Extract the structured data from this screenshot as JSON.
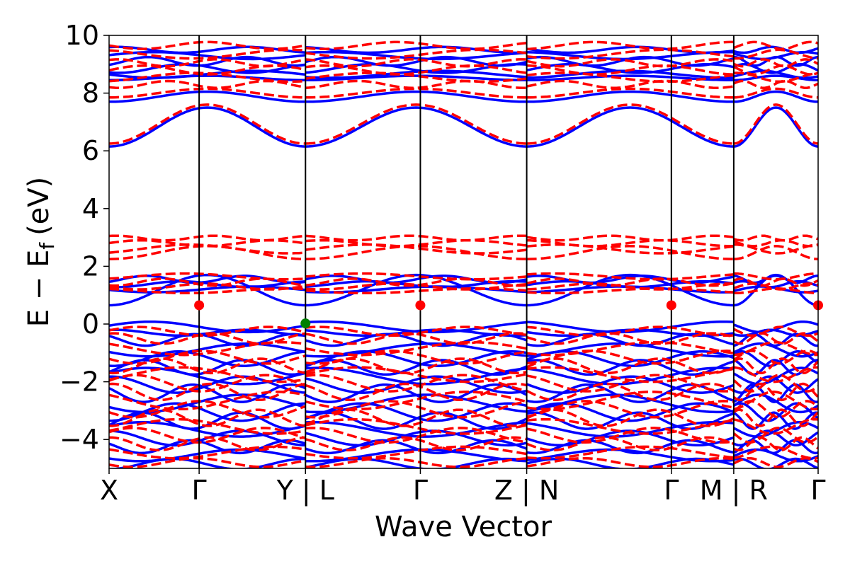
{
  "chart_data": {
    "type": "line",
    "title": "",
    "xlabel": "Wave Vector",
    "ylabel": "E − E",
    "ylabel_subscript": "f",
    "ylabel_unit": "(eV)",
    "ylim": [
      -5,
      10
    ],
    "yticks": [
      -4,
      -2,
      0,
      2,
      4,
      6,
      8,
      10
    ],
    "ytick_labels": [
      "−4",
      "−2",
      "0",
      "2",
      "4",
      "6",
      "8",
      "10"
    ],
    "xlim": [
      0,
      1
    ],
    "kpoint_ticks": [
      {
        "x": 0.0,
        "label": "X"
      },
      {
        "x": 0.127,
        "label": "Γ"
      },
      {
        "x": 0.277,
        "label": "Y | L"
      },
      {
        "x": 0.439,
        "label": "Γ"
      },
      {
        "x": 0.589,
        "label": "Z | N"
      },
      {
        "x": 0.793,
        "label": "Γ"
      },
      {
        "x": 0.881,
        "label": "M | R"
      },
      {
        "x": 1.0,
        "label": "Γ"
      }
    ],
    "segments": [
      {
        "start": 0.0,
        "end": 0.277,
        "dispersion_phase": 0.0
      },
      {
        "start": 0.277,
        "end": 0.589,
        "dispersion_phase": 0.13
      },
      {
        "start": 0.589,
        "end": 0.881,
        "dispersion_phase": 0.26
      },
      {
        "start": 0.881,
        "end": 1.0,
        "dispersion_phase": 0.39
      }
    ],
    "colors": {
      "spin_up": "#0000ff",
      "spin_down": "#ff0000",
      "cbm": "#ff0000",
      "vbm": "#008000",
      "kpath_line": "#000000"
    },
    "series": [
      {
        "style": "solid",
        "bands": [
          {
            "base": 6.15,
            "amp": 1.35,
            "shape": "cos"
          },
          {
            "base": 7.7,
            "amp": 0.35,
            "shape": "cos"
          },
          {
            "base": 8.45,
            "amp": 0.15,
            "shape": "cos"
          },
          {
            "base": 8.65,
            "amp": 0.12,
            "shape": "wave"
          },
          {
            "base": 8.85,
            "amp": 0.15,
            "shape": "wave"
          },
          {
            "base": 9.1,
            "amp": 0.15,
            "shape": "wave"
          },
          {
            "base": 9.3,
            "amp": 0.12,
            "shape": "wave"
          },
          {
            "base": 9.5,
            "amp": 0.1,
            "shape": "wave"
          },
          {
            "base": 0.65,
            "amp": 1.05,
            "shape": "cos"
          },
          {
            "base": 1.2,
            "amp": 0.1,
            "shape": "wave"
          },
          {
            "base": 1.38,
            "amp": 0.1,
            "shape": "wave"
          },
          {
            "base": 1.55,
            "amp": 0.12,
            "shape": "wave"
          },
          {
            "base": -0.1,
            "amp": 0.18,
            "shape": "wave"
          },
          {
            "base": -0.3,
            "amp": 0.1,
            "shape": "wave"
          },
          {
            "base": -0.55,
            "amp": 0.2,
            "shape": "wave"
          },
          {
            "base": -0.9,
            "amp": 0.22,
            "shape": "wave"
          },
          {
            "base": -1.2,
            "amp": 0.25,
            "shape": "wave"
          },
          {
            "base": -1.5,
            "amp": 0.25,
            "shape": "wave"
          },
          {
            "base": -1.8,
            "amp": 0.28,
            "shape": "wave"
          },
          {
            "base": -2.1,
            "amp": 0.28,
            "shape": "wave"
          },
          {
            "base": -2.4,
            "amp": 0.3,
            "shape": "wave"
          },
          {
            "base": -2.75,
            "amp": 0.3,
            "shape": "wave"
          },
          {
            "base": -3.05,
            "amp": 0.3,
            "shape": "wave"
          },
          {
            "base": -3.35,
            "amp": 0.28,
            "shape": "wave"
          },
          {
            "base": -3.65,
            "amp": 0.25,
            "shape": "wave"
          },
          {
            "base": -3.95,
            "amp": 0.25,
            "shape": "wave"
          },
          {
            "base": -4.25,
            "amp": 0.22,
            "shape": "wave"
          },
          {
            "base": -4.55,
            "amp": 0.2,
            "shape": "wave"
          },
          {
            "base": -4.85,
            "amp": 0.18,
            "shape": "wave"
          }
        ]
      },
      {
        "style": "dashed",
        "bands": [
          {
            "base": 6.25,
            "amp": 1.35,
            "shape": "cos"
          },
          {
            "base": 7.85,
            "amp": 0.3,
            "shape": "cos"
          },
          {
            "base": 8.3,
            "amp": 0.12,
            "shape": "wave"
          },
          {
            "base": 8.55,
            "amp": 0.15,
            "shape": "wave"
          },
          {
            "base": 8.8,
            "amp": 0.15,
            "shape": "wave"
          },
          {
            "base": 9.05,
            "amp": 0.12,
            "shape": "wave"
          },
          {
            "base": 9.35,
            "amp": 0.15,
            "shape": "wave"
          },
          {
            "base": 9.65,
            "amp": 0.12,
            "shape": "wave"
          },
          {
            "base": 2.25,
            "amp": 0.45,
            "shape": "cos"
          },
          {
            "base": 2.6,
            "amp": 0.15,
            "shape": "wave"
          },
          {
            "base": 2.8,
            "amp": 0.1,
            "shape": "wave"
          },
          {
            "base": 2.98,
            "amp": 0.08,
            "shape": "wave"
          },
          {
            "base": 1.15,
            "amp": 0.08,
            "shape": "wave"
          },
          {
            "base": 1.3,
            "amp": 0.1,
            "shape": "wave"
          },
          {
            "base": 1.45,
            "amp": 0.12,
            "shape": "wave"
          },
          {
            "base": 1.65,
            "amp": 0.1,
            "shape": "wave"
          },
          {
            "base": -0.25,
            "amp": 0.15,
            "shape": "wave"
          },
          {
            "base": -0.5,
            "amp": 0.18,
            "shape": "wave"
          },
          {
            "base": -0.85,
            "amp": 0.22,
            "shape": "wave"
          },
          {
            "base": -1.15,
            "amp": 0.22,
            "shape": "wave"
          },
          {
            "base": -1.45,
            "amp": 0.25,
            "shape": "wave"
          },
          {
            "base": -1.75,
            "amp": 0.25,
            "shape": "wave"
          },
          {
            "base": -2.05,
            "amp": 0.28,
            "shape": "wave"
          },
          {
            "base": -2.35,
            "amp": 0.28,
            "shape": "wave"
          },
          {
            "base": -2.65,
            "amp": 0.3,
            "shape": "wave"
          },
          {
            "base": -2.95,
            "amp": 0.28,
            "shape": "wave"
          },
          {
            "base": -3.25,
            "amp": 0.28,
            "shape": "wave"
          },
          {
            "base": -3.55,
            "amp": 0.25,
            "shape": "wave"
          },
          {
            "base": -3.85,
            "amp": 0.25,
            "shape": "wave"
          },
          {
            "base": -4.15,
            "amp": 0.22,
            "shape": "wave"
          },
          {
            "base": -4.45,
            "amp": 0.2,
            "shape": "wave"
          },
          {
            "base": -4.8,
            "amp": 0.15,
            "shape": "wave"
          }
        ]
      }
    ],
    "markers": [
      {
        "x": 0.127,
        "y": 0.65,
        "kind": "cbm"
      },
      {
        "x": 0.439,
        "y": 0.65,
        "kind": "cbm"
      },
      {
        "x": 0.793,
        "y": 0.65,
        "kind": "cbm"
      },
      {
        "x": 1.0,
        "y": 0.65,
        "kind": "cbm"
      },
      {
        "x": 0.277,
        "y": 0.02,
        "kind": "vbm"
      }
    ],
    "grid": false,
    "legend": "none"
  }
}
